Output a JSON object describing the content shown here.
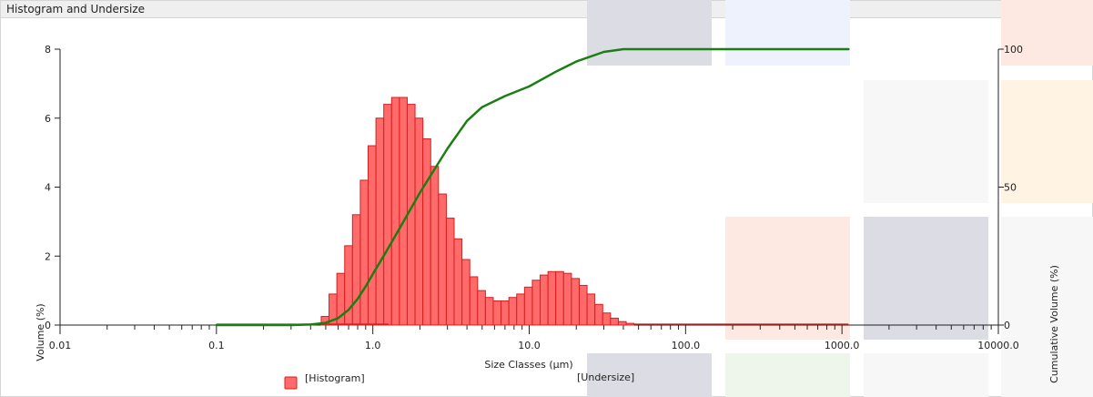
{
  "panel": {
    "title": "Histogram and Undersize"
  },
  "colors": {
    "histogram_fill": "#ff6b6b",
    "histogram_stroke": "#d81e1e",
    "undersize_line": "#1a7f12",
    "axis": "#222222",
    "ghost_gray": "#dcdce4",
    "ghost_blue": "#eef2fc",
    "ghost_pink": "#fde9e1",
    "ghost_green": "#eef6ec",
    "ghost_orange": "#fff4e3",
    "ghost_light": "#f7f7f7"
  },
  "chart_data": {
    "type": "bar",
    "title": "",
    "xlabel": "Size Classes (µm)",
    "ylabel": "Volume (%)",
    "y2label": "Cumulative Volume (%)",
    "xscale": "log",
    "xlim": [
      0.01,
      10000
    ],
    "ylim": [
      0,
      8
    ],
    "y2lim": [
      0,
      100
    ],
    "x_tick_labels": [
      "0.01",
      "0.1",
      "1.0",
      "10.0",
      "100.0",
      "1000.0",
      "10000.0"
    ],
    "y_tick_labels": [
      "0",
      "2",
      "4",
      "6",
      "8"
    ],
    "y2_tick_labels": [
      "0",
      "50",
      "100"
    ],
    "legend_position": "bottom",
    "series": [
      {
        "name": "[Histogram]",
        "type": "bar",
        "log10_class_edges": [
          -0.33,
          -0.28,
          -0.23,
          -0.18,
          -0.13,
          -0.08,
          -0.03,
          0.02,
          0.07,
          0.12,
          0.17,
          0.22,
          0.27,
          0.32,
          0.37,
          0.42,
          0.47,
          0.52,
          0.57,
          0.62,
          0.67,
          0.72,
          0.77,
          0.82,
          0.87,
          0.92,
          0.97,
          1.02,
          1.07,
          1.12,
          1.17,
          1.22,
          1.27,
          1.32,
          1.37,
          1.42,
          1.47,
          1.52,
          1.57,
          1.62,
          1.67
        ],
        "values": [
          0.25,
          0.9,
          1.5,
          2.3,
          3.2,
          4.2,
          5.2,
          6.0,
          6.4,
          6.6,
          6.6,
          6.4,
          6.0,
          5.4,
          4.6,
          3.8,
          3.1,
          2.5,
          1.9,
          1.4,
          1.0,
          0.8,
          0.7,
          0.7,
          0.8,
          0.9,
          1.1,
          1.3,
          1.45,
          1.55,
          1.55,
          1.5,
          1.35,
          1.15,
          0.9,
          0.6,
          0.35,
          0.2,
          0.1,
          0.05
        ]
      },
      {
        "name": "[Undersize]",
        "type": "line",
        "x": [
          0.1,
          0.2,
          0.3,
          0.4,
          0.5,
          0.6,
          0.7,
          0.8,
          0.9,
          1.0,
          1.2,
          1.5,
          2.0,
          3.0,
          4.0,
          5.0,
          7.0,
          10.0,
          15.0,
          20.0,
          30.0,
          40.0,
          100.0,
          1000.0,
          1100.0
        ],
        "y": [
          0,
          0,
          0,
          0.2,
          0.8,
          2.5,
          5.5,
          9.5,
          14.0,
          18.5,
          26.0,
          35.5,
          48.0,
          64.0,
          74.0,
          79.0,
          83.0,
          86.5,
          92.0,
          95.5,
          99.0,
          100,
          100,
          100,
          100
        ]
      }
    ]
  }
}
